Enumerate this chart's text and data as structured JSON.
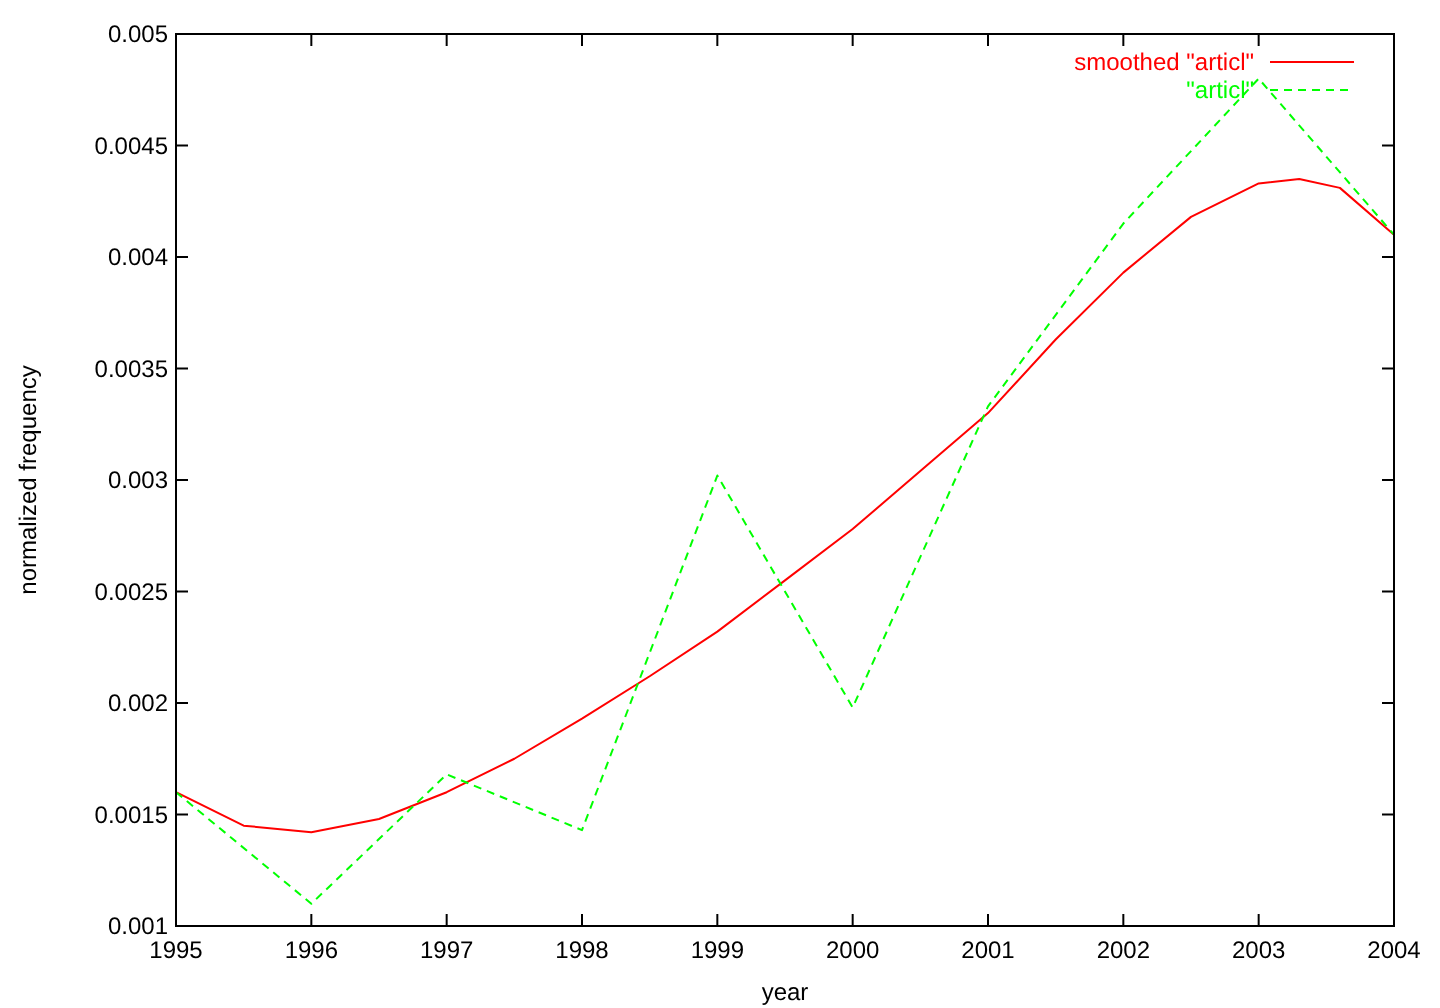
{
  "chart_data": {
    "type": "line",
    "xlabel": "year",
    "ylabel": "normalized frequency",
    "xlim": [
      1995,
      2004
    ],
    "ylim": [
      0.001,
      0.005
    ],
    "xticks": [
      1995,
      1996,
      1997,
      1998,
      1999,
      2000,
      2001,
      2002,
      2003,
      2004
    ],
    "yticks": [
      0.001,
      0.0015,
      0.002,
      0.0025,
      0.003,
      0.0035,
      0.004,
      0.0045,
      0.005
    ],
    "grid": false,
    "legend": "top right",
    "marker": "none",
    "series": [
      {
        "name": "smoothed \"articl\"",
        "color": "#ff0000",
        "line_style": "solid",
        "x": [
          1995,
          1995.5,
          1996,
          1996.5,
          1997,
          1997.5,
          1998,
          1998.5,
          1999,
          1999.5,
          2000,
          2000.5,
          2001,
          2001.5,
          2002,
          2002.5,
          2003,
          2003.3,
          2003.6,
          2004
        ],
        "values": [
          0.0016,
          0.00145,
          0.00142,
          0.00148,
          0.0016,
          0.00175,
          0.00193,
          0.00212,
          0.00232,
          0.00255,
          0.00278,
          0.00304,
          0.0033,
          0.00363,
          0.00393,
          0.00418,
          0.00433,
          0.00435,
          0.00431,
          0.0041
        ]
      },
      {
        "name": "\"articl\"",
        "color": "#00ff00",
        "line_style": "dashed",
        "x": [
          1995,
          1996,
          1997,
          1998,
          1999,
          2000,
          2001,
          2002,
          2003,
          2004
        ],
        "values": [
          0.0016,
          0.0011,
          0.00168,
          0.00143,
          0.00302,
          0.00198,
          0.00333,
          0.00415,
          0.0048,
          0.0041
        ]
      }
    ]
  }
}
